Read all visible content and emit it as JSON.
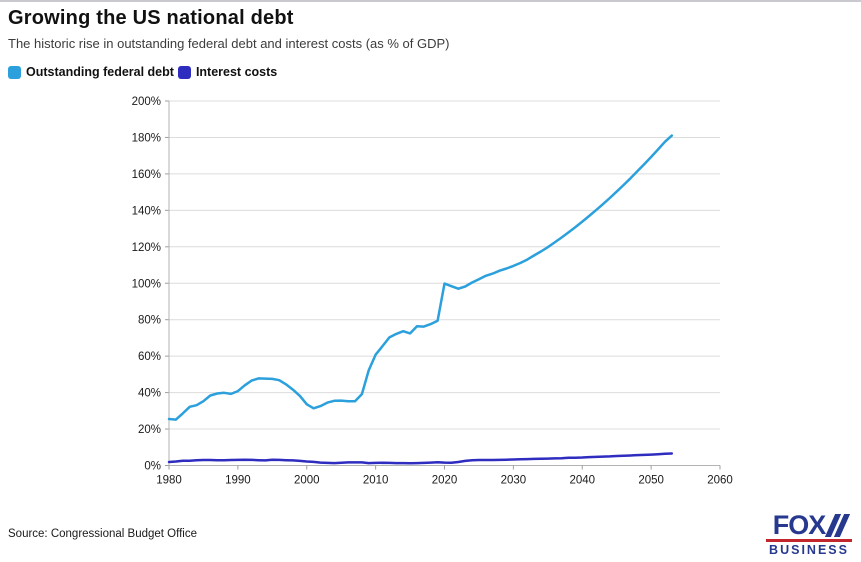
{
  "header": {
    "title": "Growing the US national debt",
    "subtitle": "The historic rise in outstanding federal debt and interest costs (as % of GDP)"
  },
  "legend": {
    "items": [
      {
        "label": "Outstanding federal debt",
        "color": "#2ba0dc"
      },
      {
        "label": "Interest costs",
        "color": "#2f2cc0"
      }
    ]
  },
  "footer": {
    "source": "Source: Congressional Budget Office",
    "logo": {
      "line1": "FOX",
      "line2": "BUSINESS"
    }
  },
  "chart_data": {
    "type": "line",
    "title": "Growing the US national debt",
    "xlabel": "",
    "ylabel": "",
    "xlim": [
      1980,
      2060
    ],
    "ylim": [
      0,
      200
    ],
    "x_ticks": [
      1980,
      1990,
      2000,
      2010,
      2020,
      2030,
      2040,
      2050,
      2060
    ],
    "y_ticks": [
      0,
      20,
      40,
      60,
      80,
      100,
      120,
      140,
      160,
      180,
      200
    ],
    "y_tick_suffix": "%",
    "grid": true,
    "legend_position": "top-left",
    "x": [
      1980,
      1981,
      1982,
      1983,
      1984,
      1985,
      1986,
      1987,
      1988,
      1989,
      1990,
      1991,
      1992,
      1993,
      1994,
      1995,
      1996,
      1997,
      1998,
      1999,
      2000,
      2001,
      2002,
      2003,
      2004,
      2005,
      2006,
      2007,
      2008,
      2009,
      2010,
      2011,
      2012,
      2013,
      2014,
      2015,
      2016,
      2017,
      2018,
      2019,
      2020,
      2021,
      2022,
      2023,
      2024,
      2025,
      2026,
      2027,
      2028,
      2029,
      2030,
      2031,
      2032,
      2033,
      2034,
      2035,
      2036,
      2037,
      2038,
      2039,
      2040,
      2041,
      2042,
      2043,
      2044,
      2045,
      2046,
      2047,
      2048,
      2049,
      2050,
      2051,
      2052,
      2053
    ],
    "series": [
      {
        "name": "Outstanding federal debt",
        "color": "#2ba0dc",
        "values": [
          25.5,
          25.2,
          28.6,
          32.2,
          33.1,
          35.3,
          38.4,
          39.5,
          39.9,
          39.3,
          40.8,
          44.0,
          46.6,
          47.8,
          47.7,
          47.5,
          46.8,
          44.5,
          41.6,
          38.2,
          33.6,
          31.4,
          32.6,
          34.5,
          35.5,
          35.6,
          35.3,
          35.2,
          39.2,
          52.2,
          60.8,
          65.5,
          70.3,
          72.2,
          73.7,
          72.5,
          76.4,
          76.2,
          77.6,
          79.4,
          99.8,
          98.4,
          97.0,
          98.2,
          100.4,
          102.2,
          104.1,
          105.3,
          106.9,
          108.1,
          109.5,
          111.1,
          113.0,
          115.2,
          117.4,
          119.8,
          122.4,
          125.1,
          127.9,
          130.8,
          133.8,
          136.9,
          140.1,
          143.4,
          146.8,
          150.3,
          153.9,
          157.6,
          161.4,
          165.3,
          169.3,
          173.4,
          177.6,
          181.0
        ]
      },
      {
        "name": "Interest costs",
        "color": "#2f2cc0",
        "values": [
          1.9,
          2.2,
          2.6,
          2.6,
          2.9,
          3.0,
          3.0,
          2.9,
          2.9,
          3.0,
          3.1,
          3.2,
          3.1,
          2.9,
          2.8,
          3.2,
          3.1,
          2.9,
          2.8,
          2.5,
          2.2,
          2.0,
          1.6,
          1.4,
          1.3,
          1.5,
          1.7,
          1.7,
          1.7,
          1.3,
          1.4,
          1.5,
          1.4,
          1.3,
          1.3,
          1.2,
          1.3,
          1.4,
          1.6,
          1.8,
          1.6,
          1.5,
          1.9,
          2.5,
          2.9,
          3.0,
          3.0,
          3.0,
          3.1,
          3.2,
          3.3,
          3.4,
          3.5,
          3.6,
          3.7,
          3.8,
          3.9,
          4.0,
          4.2,
          4.3,
          4.4,
          4.6,
          4.7,
          4.9,
          5.0,
          5.2,
          5.3,
          5.5,
          5.7,
          5.8,
          6.0,
          6.2,
          6.4,
          6.6
        ]
      }
    ]
  }
}
